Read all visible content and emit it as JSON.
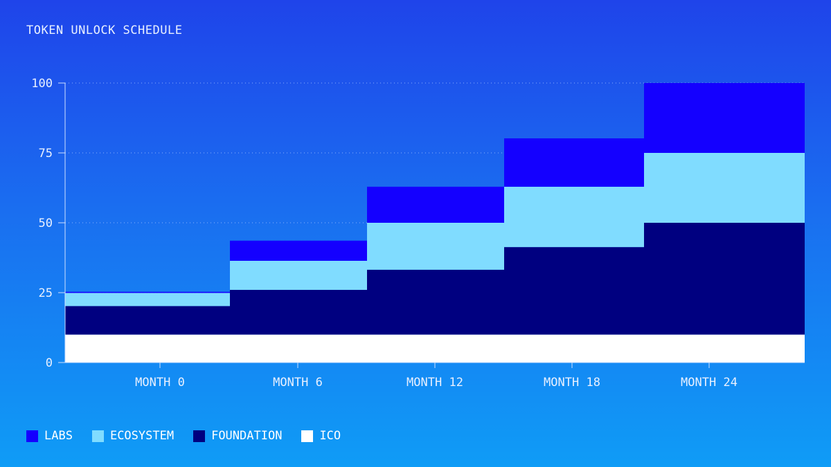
{
  "chart_data": {
    "type": "area",
    "stacked": true,
    "step": true,
    "title": "TOKEN UNLOCK SCHEDULE",
    "xlabel": "",
    "ylabel": "",
    "categories": [
      "MONTH 0",
      "MONTH 6",
      "MONTH 12",
      "MONTH 18",
      "MONTH 24"
    ],
    "ylim": [
      0,
      100
    ],
    "yticks": [
      "0",
      "25",
      "50",
      "75",
      "100"
    ],
    "grid": "horizontal dotted",
    "legend_position": "bottom-left",
    "series": [
      {
        "name": "ICO",
        "color": "#ffffff",
        "values": [
          10,
          10,
          10,
          10,
          10
        ]
      },
      {
        "name": "FOUNDATION",
        "color": "#000080",
        "values": [
          10.2,
          16,
          23.2,
          31.3,
          40
        ]
      },
      {
        "name": "ECOSYSTEM",
        "color": "#80dcff",
        "values": [
          4.7,
          10.4,
          16.8,
          21.6,
          25
        ]
      },
      {
        "name": "LABS",
        "color": "#1400ff",
        "values": [
          0.4,
          7.2,
          12.9,
          17.3,
          25
        ]
      }
    ],
    "legend_order": [
      "LABS",
      "ECOSYSTEM",
      "FOUNDATION",
      "ICO"
    ]
  }
}
